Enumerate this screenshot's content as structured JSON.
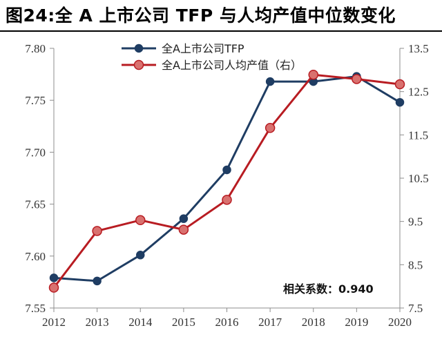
{
  "title": "图24:全 A 上市公司 TFP 与人均产值中位数变化",
  "chart_data": {
    "type": "line",
    "categories": [
      "2012",
      "2013",
      "2014",
      "2015",
      "2016",
      "2017",
      "2018",
      "2019",
      "2020"
    ],
    "series": [
      {
        "name": "全A上市公司TFP",
        "axis": "left",
        "color": "#1f3d63",
        "values": [
          7.579,
          7.576,
          7.601,
          7.636,
          7.683,
          7.768,
          7.768,
          7.773,
          7.748
        ]
      },
      {
        "name": "全A上市公司人均产值（右）",
        "axis": "right",
        "color": "#b81c22",
        "values": [
          7.97,
          9.28,
          9.53,
          9.31,
          10.0,
          11.66,
          12.89,
          12.79,
          12.67
        ]
      }
    ],
    "y_left": {
      "ylim": [
        7.55,
        7.8
      ],
      "ticks": [
        "7.55",
        "7.60",
        "7.65",
        "7.70",
        "7.75",
        "7.80"
      ]
    },
    "y_right": {
      "ylim": [
        7.5,
        13.5
      ],
      "ticks": [
        "7.5",
        "8.5",
        "9.5",
        "10.5",
        "11.5",
        "12.5",
        "13.5"
      ]
    },
    "grid": false,
    "legend_position": "top-center",
    "annotation": "相关系数：0.940"
  }
}
